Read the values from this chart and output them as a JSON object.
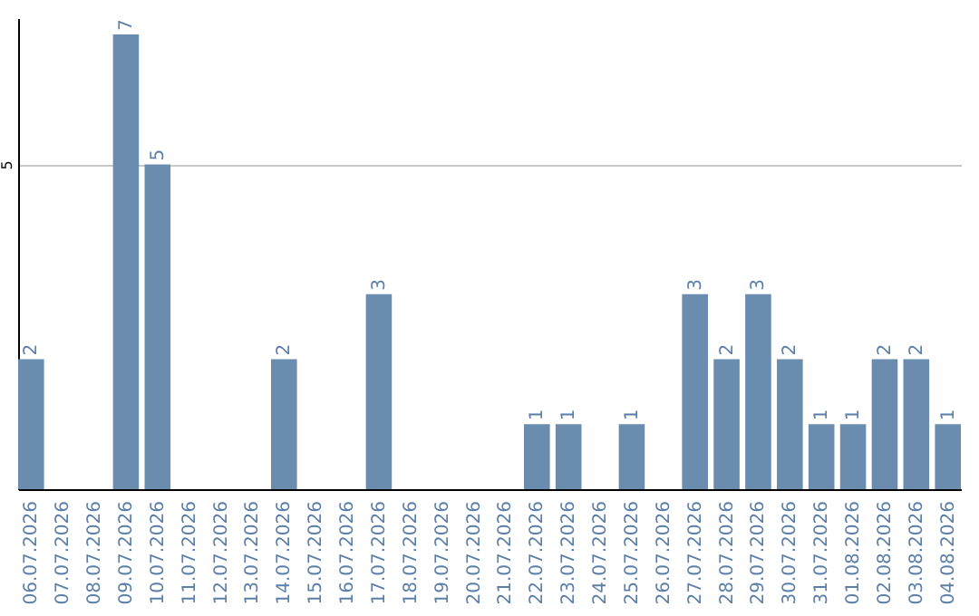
{
  "chart_data": {
    "type": "bar",
    "categories": [
      "06.07.2026",
      "07.07.2026",
      "08.07.2026",
      "09.07.2026",
      "10.07.2026",
      "11.07.2026",
      "12.07.2026",
      "13.07.2026",
      "14.07.2026",
      "15.07.2026",
      "16.07.2026",
      "17.07.2026",
      "18.07.2026",
      "19.07.2026",
      "20.07.2026",
      "21.07.2026",
      "22.07.2026",
      "23.07.2026",
      "24.07.2026",
      "25.07.2026",
      "26.07.2026",
      "27.07.2026",
      "28.07.2026",
      "29.07.2026",
      "30.07.2026",
      "31.07.2026",
      "01.08.2026",
      "02.08.2026",
      "03.08.2026",
      "04.08.2026"
    ],
    "values": [
      2,
      0,
      0,
      7,
      5,
      0,
      0,
      0,
      2,
      0,
      0,
      3,
      0,
      0,
      0,
      0,
      1,
      1,
      0,
      1,
      0,
      3,
      2,
      3,
      2,
      1,
      1,
      2,
      2,
      1
    ],
    "value_labels": [
      "2",
      null,
      null,
      "7",
      "5",
      null,
      null,
      null,
      "2",
      null,
      null,
      "3",
      null,
      null,
      null,
      null,
      "1",
      "1",
      null,
      "1",
      null,
      "3",
      "2",
      "3",
      "2",
      "1",
      "1",
      "2",
      "2",
      "1"
    ],
    "color": "#6a8caf",
    "ylim": [
      0,
      7.25
    ],
    "yticks": [
      5
    ],
    "grid": "y"
  }
}
